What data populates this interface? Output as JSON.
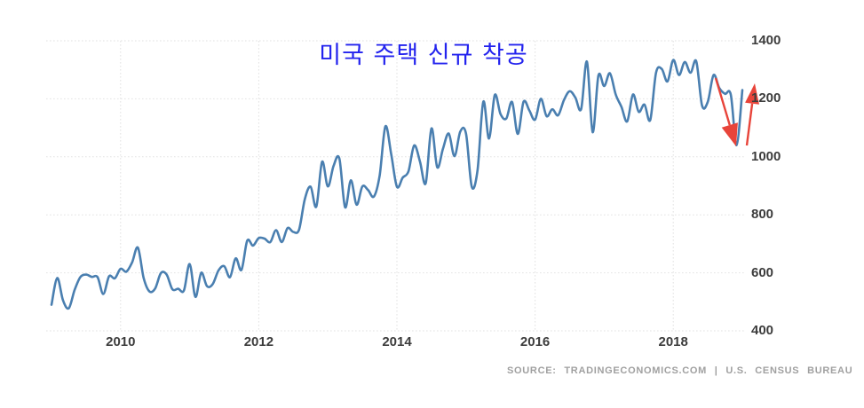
{
  "title": {
    "text": "미국 주택 신규 착공",
    "color": "#2323ee"
  },
  "source": {
    "text": "SOURCE: TRADINGECONOMICS.COM | U.S. CENSUS BUREAU"
  },
  "chart_data": {
    "type": "line",
    "title": "미국 주택 신규 착공",
    "line_color": "#4a7fb0",
    "grid": true,
    "legend": "none",
    "ylim": [
      400,
      1400
    ],
    "yticks": [
      400,
      600,
      800,
      1000,
      1200,
      1400
    ],
    "xticks": [
      {
        "label": "2010",
        "pos": 12
      },
      {
        "label": "2012",
        "pos": 36
      },
      {
        "label": "2014",
        "pos": 60
      },
      {
        "label": "2016",
        "pos": 84
      },
      {
        "label": "2018",
        "pos": 108
      }
    ],
    "series": [
      {
        "name": "미국 주택 신규 착공",
        "start_month": "2009-01",
        "end_month": "2019-01",
        "freq": "monthly",
        "values": [
          490,
          582,
          505,
          478,
          540,
          585,
          594,
          586,
          585,
          527,
          588,
          581,
          614,
          604,
          636,
          687,
          583,
          536,
          546,
          599,
          594,
          543,
          545,
          539,
          630,
          517,
          600,
          554,
          561,
          608,
          623,
          585,
          650,
          610,
          711,
          694,
          720,
          718,
          706,
          747,
          706,
          754,
          741,
          749,
          854,
          897,
          828,
          983,
          898,
          969,
          994,
          826,
          919,
          835,
          898,
          885,
          863,
          936,
          1105,
          1010,
          897,
          928,
          950,
          1039,
          984,
          909,
          1098,
          964,
          1028,
          1080,
          1002,
          1087,
          1080,
          897,
          954,
          1190,
          1063,
          1213,
          1147,
          1132,
          1189,
          1079,
          1190,
          1160,
          1128,
          1200,
          1140,
          1164,
          1143,
          1195,
          1226,
          1204,
          1165,
          1328,
          1085,
          1280,
          1244,
          1288,
          1215,
          1172,
          1122,
          1215,
          1155,
          1180,
          1127,
          1290,
          1303,
          1260,
          1334,
          1282,
          1327,
          1290,
          1329,
          1177,
          1190,
          1282,
          1237,
          1217,
          1214,
          1040,
          1230
        ]
      }
    ]
  },
  "annotations": [
    {
      "name": "down-arrow",
      "from": [
        806,
        88
      ],
      "to": [
        829,
        165
      ],
      "head_length": 25,
      "head_half_width": 9.5,
      "color": "#e8443a"
    },
    {
      "name": "up-arrow",
      "from": [
        841,
        164
      ],
      "to": [
        850,
        94
      ],
      "head_length": 23,
      "head_half_width": 8,
      "color": "#e8443a"
    }
  ]
}
